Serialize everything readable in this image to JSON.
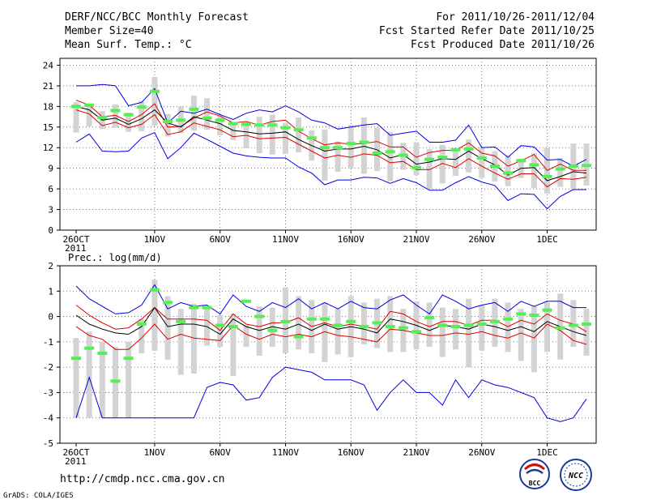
{
  "header": {
    "title": "DERF/NCC/BCC Monthly Forecast",
    "member_size": "Member Size=40",
    "variable": "Mean Surf. Temp.: °C",
    "forecast_range": "For 2011/10/26-2011/12/04",
    "fcst_started": "Fcst Started Refer Date 2011/10/25",
    "fcst_produced": "Fcst Produced Date 2011/10/26"
  },
  "footer": {
    "url": "http://cmdp.ncc.cma.gov.cn",
    "credit": "GrADS: COLA/IGES",
    "logo_bcc_text": "BCC",
    "logo_ncc_text": "NCC"
  },
  "colors": {
    "box": "#d3d3d3",
    "mean": "#000000",
    "inner": "#dd0000",
    "outer": "#0000dd",
    "median": "#55ee55",
    "grid": "#555555"
  },
  "chart_data": [
    {
      "type": "box-ensemble",
      "title": "Mean Surf. Temp.: °C",
      "xlabel": "",
      "ylabel": "",
      "ylim": [
        0,
        25
      ],
      "yticks": [
        0,
        3,
        6,
        9,
        12,
        15,
        18,
        21,
        24
      ],
      "x_tick_labels": [
        "26OCT",
        "1NOV",
        "6NOV",
        "11NOV",
        "16NOV",
        "21NOV",
        "26NOV",
        "1DEC"
      ],
      "x_tick_days": [
        1,
        7,
        12,
        17,
        22,
        27,
        32,
        37
      ],
      "year_label": "2011",
      "days": [
        1,
        2,
        3,
        4,
        5,
        6,
        7,
        8,
        9,
        10,
        11,
        12,
        13,
        14,
        15,
        16,
        17,
        18,
        19,
        20,
        21,
        22,
        23,
        24,
        25,
        26,
        27,
        28,
        29,
        30,
        31,
        32,
        33,
        34,
        35,
        36,
        37,
        38,
        39,
        40
      ],
      "series": [
        {
          "name": "max",
          "values": [
            21,
            21,
            21.2,
            21,
            18.1,
            18.6,
            20.6,
            15.6,
            17.3,
            17,
            17.6,
            16.8,
            16.1,
            17,
            17.5,
            17.2,
            18.1,
            17.2,
            16,
            15.6,
            14.7,
            15,
            15.3,
            15.5,
            13.8,
            14.1,
            14.4,
            12.8,
            12.8,
            13.1,
            15.3,
            12,
            12.1,
            10.6,
            12.3,
            12.1,
            10.2,
            10.3,
            9.3,
            10.3
          ]
        },
        {
          "name": "upper",
          "values": [
            18.9,
            18.2,
            16.5,
            16.7,
            15.8,
            16.8,
            18.4,
            15,
            15.1,
            16.3,
            17.2,
            16.6,
            15.6,
            15.8,
            15.3,
            15.8,
            16,
            14.4,
            13.3,
            12.4,
            12.7,
            12.5,
            12.6,
            12.9,
            12.1,
            12.1,
            10.6,
            11.3,
            11.6,
            11.6,
            12.7,
            11.2,
            10.8,
            9.3,
            10.1,
            11,
            8.7,
            9.6,
            8.7,
            8.7
          ]
        },
        {
          "name": "mean",
          "values": [
            18,
            17.5,
            16,
            16.3,
            15.4,
            16.2,
            17.5,
            15.6,
            15,
            16.5,
            16,
            15.5,
            14.5,
            14.3,
            14,
            14.1,
            14.3,
            13.2,
            12.3,
            11.5,
            11.8,
            11.8,
            12.2,
            11.7,
            10.5,
            11,
            9.6,
            9.9,
            10.4,
            10.3,
            11.5,
            10.4,
            9.5,
            8,
            9,
            9.1,
            7.2,
            7.8,
            8.5,
            8.3
          ]
        },
        {
          "name": "lower",
          "values": [
            17.5,
            16.9,
            15.2,
            15.7,
            14.9,
            15.4,
            16.8,
            13.9,
            14.3,
            15.6,
            15.1,
            14.6,
            13.6,
            13.8,
            13.3,
            13.4,
            13.5,
            12.5,
            11.5,
            10.5,
            10.9,
            10.6,
            11.1,
            10.9,
            9.8,
            10,
            8.8,
            8.8,
            9.7,
            9.1,
            10.4,
            9.3,
            8.3,
            7.4,
            8.2,
            8.2,
            6.3,
            7.5,
            7.4,
            7.7
          ]
        },
        {
          "name": "min",
          "values": [
            12.8,
            14,
            11.5,
            11.4,
            11.5,
            13.4,
            14.2,
            10.4,
            12,
            14.1,
            13.2,
            12.2,
            11.2,
            10.8,
            10.6,
            10.5,
            10.5,
            9.2,
            8.3,
            6.6,
            7.3,
            7.3,
            7.7,
            7.6,
            6.8,
            7.5,
            6.9,
            5.8,
            5.8,
            6.9,
            7.8,
            7,
            6.5,
            4.3,
            5.3,
            5.2,
            3.1,
            4.9,
            5.9,
            5.9
          ]
        },
        {
          "name": "box_top",
          "values": [
            18.6,
            18.2,
            17.3,
            18.3,
            17.1,
            18.8,
            22.3,
            16.9,
            18,
            19.6,
            19.2,
            16.6,
            15.7,
            15.7,
            16.5,
            16.8,
            15.6,
            16.4,
            14.5,
            14.6,
            12.9,
            15.3,
            16.4,
            14.9,
            14.3,
            12.7,
            12.8,
            11.8,
            12.4,
            11.6,
            13.2,
            12.1,
            11.5,
            10.9,
            10.4,
            11.2,
            12,
            10.5,
            12.6,
            12.6
          ]
        },
        {
          "name": "box_bottom",
          "values": [
            14.2,
            15.1,
            14.7,
            14.9,
            14.3,
            14.4,
            15.2,
            13.6,
            14.1,
            14.5,
            14.6,
            13.8,
            13.1,
            11.9,
            11.2,
            11,
            11.1,
            11.3,
            10.1,
            7.2,
            8.5,
            9,
            8.2,
            8.6,
            7.1,
            8.8,
            8,
            6,
            6.8,
            7.9,
            8.4,
            7.6,
            7.1,
            6.4,
            7.6,
            6.1,
            5.3,
            6.3,
            5.9,
            6.5
          ]
        },
        {
          "name": "median",
          "values": [
            18,
            18.2,
            16.4,
            17.4,
            16.8,
            17.9,
            20.2,
            15.8,
            16,
            17.6,
            16.3,
            16,
            15.5,
            15.4,
            15.3,
            15.3,
            14.9,
            14.6,
            13.4,
            12,
            12,
            12.6,
            12.8,
            11.2,
            11.4,
            10.9,
            9.1,
            10.3,
            10.6,
            11.7,
            11.8,
            10.5,
            9.3,
            8.3,
            10.1,
            9.5,
            7.8,
            8.9,
            9.3,
            9.4
          ]
        }
      ]
    },
    {
      "type": "box-ensemble",
      "title": "Prec.: log(mm/d)",
      "xlabel": "",
      "ylabel": "",
      "ylim": [
        -5,
        2
      ],
      "yticks": [
        -5,
        -4,
        -3,
        -2,
        -1,
        0,
        1,
        2
      ],
      "x_tick_labels": [
        "26OCT",
        "1NOV",
        "6NOV",
        "11NOV",
        "16NOV",
        "21NOV",
        "26NOV",
        "1DEC"
      ],
      "x_tick_days": [
        1,
        7,
        12,
        17,
        22,
        27,
        32,
        37
      ],
      "year_label": "2011",
      "days": [
        1,
        2,
        3,
        4,
        5,
        6,
        7,
        8,
        9,
        10,
        11,
        12,
        13,
        14,
        15,
        16,
        17,
        18,
        19,
        20,
        21,
        22,
        23,
        24,
        25,
        26,
        27,
        28,
        29,
        30,
        31,
        32,
        33,
        34,
        35,
        36,
        37,
        38,
        39,
        40
      ],
      "series": [
        {
          "name": "max",
          "values": [
            1.2,
            0.7,
            0.4,
            0.1,
            0.15,
            0.45,
            1.25,
            0.3,
            0.55,
            0.4,
            0.45,
            0.1,
            0.85,
            0.4,
            0.2,
            0.55,
            0.35,
            0.7,
            0.3,
            0.55,
            0.3,
            0.6,
            0.35,
            0.3,
            0.65,
            0.85,
            0.45,
            0.1,
            0.85,
            0.6,
            0.3,
            0.45,
            0.55,
            0.2,
            0.6,
            0.4,
            0.6,
            0.6,
            0.35,
            0.35
          ]
        },
        {
          "name": "upper",
          "values": [
            0.45,
            0.05,
            -0.25,
            -0.5,
            -0.45,
            -0.1,
            0.35,
            -0.1,
            -0.1,
            -0.1,
            -0.15,
            -0.55,
            0.1,
            -0.3,
            -0.4,
            -0.25,
            -0.25,
            -0.05,
            -0.4,
            -0.25,
            -0.4,
            -0.3,
            -0.4,
            -0.5,
            0.2,
            0.1,
            -0.2,
            -0.4,
            -0.2,
            -0.2,
            -0.35,
            -0.15,
            -0.15,
            -0.4,
            -0.15,
            -0.3,
            0.1,
            -0.15,
            -0.3,
            -0.6
          ]
        },
        {
          "name": "mean",
          "values": [
            0.05,
            -0.3,
            -0.5,
            -0.65,
            -0.7,
            -0.4,
            0.35,
            -0.4,
            -0.3,
            -0.3,
            -0.4,
            -0.7,
            -0.1,
            -0.4,
            -0.55,
            -0.4,
            -0.5,
            -0.3,
            -0.55,
            -0.3,
            -0.5,
            -0.4,
            -0.5,
            -0.65,
            -0.1,
            -0.2,
            -0.35,
            -0.55,
            -0.35,
            -0.4,
            -0.5,
            -0.3,
            -0.4,
            -0.55,
            -0.4,
            -0.6,
            -0.2,
            -0.4,
            -0.6,
            -0.75
          ]
        },
        {
          "name": "lower",
          "values": [
            -0.4,
            -0.75,
            -0.9,
            -1.3,
            -1.3,
            -0.85,
            -0.3,
            -0.9,
            -0.7,
            -0.85,
            -0.9,
            -0.95,
            -0.35,
            -0.7,
            -0.9,
            -0.7,
            -0.8,
            -0.7,
            -0.8,
            -0.6,
            -0.75,
            -0.8,
            -0.9,
            -1,
            -0.5,
            -0.55,
            -0.65,
            -0.75,
            -0.75,
            -0.65,
            -0.7,
            -0.6,
            -0.75,
            -0.85,
            -0.65,
            -0.85,
            -0.3,
            -0.55,
            -0.95,
            -1.1
          ]
        },
        {
          "name": "min",
          "values": [
            -4,
            -2.4,
            -4,
            -4,
            -4,
            -4,
            -4,
            -4,
            -4,
            -4,
            -2.8,
            -2.6,
            -2.7,
            -3.3,
            -3.2,
            -2.4,
            -2,
            -2.1,
            -2.2,
            -2.5,
            -2.5,
            -2.5,
            -2.7,
            -3.7,
            -3,
            -2.5,
            -3,
            -3,
            -3.5,
            -2.5,
            -3.2,
            -2.5,
            -2.7,
            -2.8,
            -3,
            -3.2,
            -4,
            -4.15,
            -4,
            -3.25
          ]
        },
        {
          "name": "box_top",
          "values": [
            -0.85,
            -0.6,
            -1,
            -1.2,
            -1,
            -0.1,
            1.45,
            0.8,
            0.3,
            0.5,
            0.4,
            0.05,
            0.1,
            -0.35,
            0.4,
            0.35,
            1.15,
            0.8,
            0.65,
            0.55,
            0.3,
            0.8,
            0.55,
            0.7,
            0.8,
            0.3,
            0.6,
            0.55,
            0.35,
            0.3,
            0.7,
            0.45,
            0.7,
            0.55,
            0.3,
            0.4,
            0.55,
            0.9,
            0.65,
            0.3
          ]
        },
        {
          "name": "box_bottom",
          "values": [
            -4,
            -4,
            -4,
            -4,
            -4,
            -1.45,
            -1.35,
            -1.7,
            -2.3,
            -2.25,
            -1.15,
            -1.2,
            -2.35,
            -1.2,
            -1.55,
            -1.2,
            -1.45,
            -1.3,
            -1.45,
            -1.8,
            -1.5,
            -1.6,
            -1.1,
            -1.25,
            -1.4,
            -1.4,
            -1.3,
            -1.2,
            -1.6,
            -1.3,
            -2,
            -1.35,
            -1.2,
            -1.4,
            -1.75,
            -2.2,
            -1.4,
            -1.7,
            -1.2,
            -1.55
          ]
        },
        {
          "name": "median",
          "values": [
            -1.65,
            -1.25,
            -1.45,
            -2.55,
            -1.65,
            -0.3,
            1.05,
            0.55,
            -0.2,
            0.35,
            0.35,
            -0.35,
            -0.4,
            0.6,
            0,
            -0.55,
            -0.2,
            -0.8,
            -0.1,
            -0.1,
            -0.35,
            -0.2,
            -0.4,
            -0.25,
            -0.4,
            -0.45,
            -0.6,
            -0.05,
            -0.35,
            -0.4,
            -0.35,
            -0.3,
            -0.2,
            -0.1,
            0.1,
            0.05,
            0.25,
            -0.45,
            -0.35,
            -0.3
          ]
        }
      ]
    }
  ]
}
